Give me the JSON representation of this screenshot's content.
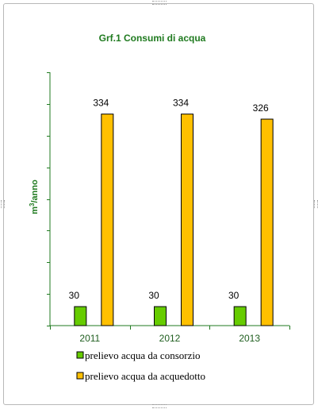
{
  "chart_data": {
    "type": "bar",
    "title": "Grf.1 Consumi di acqua",
    "ylabel_prefix": "m",
    "ylabel_sup": "3",
    "ylabel_suffix": "/anno",
    "xlabel": "",
    "categories": [
      "2011",
      "2012",
      "2013"
    ],
    "series": [
      {
        "name": "prelievo acqua da consorzio",
        "values": [
          30,
          30,
          30
        ],
        "color": "#66cc00"
      },
      {
        "name": "prelievo acqua da acquedotto",
        "values": [
          334,
          334,
          326
        ],
        "color": "#ffc000"
      }
    ],
    "ylim": [
      0,
      400
    ],
    "grid": false,
    "legend_position": "bottom",
    "axis_color": "#1f7a1f"
  }
}
